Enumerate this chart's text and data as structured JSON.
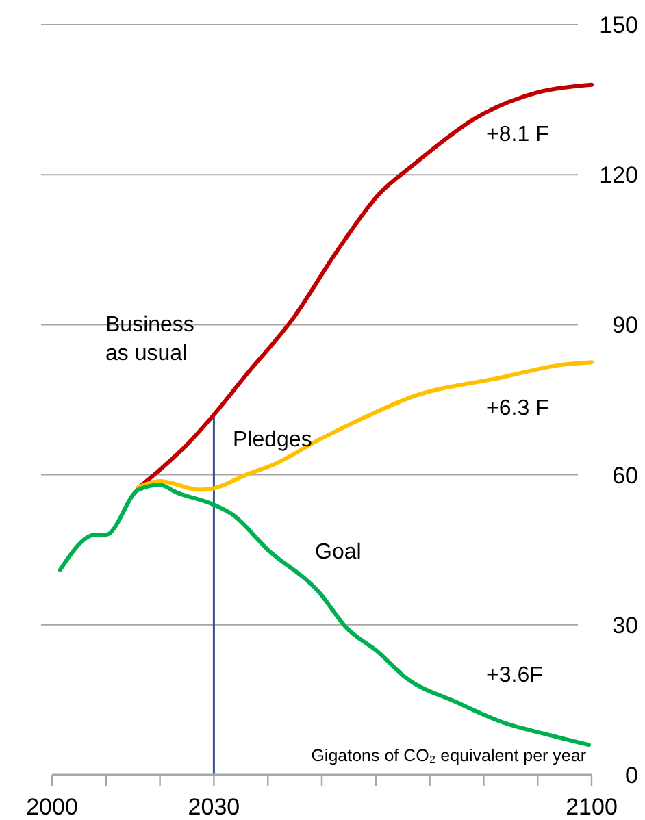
{
  "chart_data": {
    "type": "line",
    "ylabel": "Gigatons of CO₂ equivalent per year",
    "xlim": [
      2000,
      2100
    ],
    "ylim": [
      0,
      150
    ],
    "xticks": [
      2000,
      {
        "value": 2010,
        "label": null
      },
      {
        "value": 2020,
        "label": null
      },
      2030,
      {
        "value": 2040,
        "label": null
      },
      {
        "value": 2050,
        "label": null
      },
      {
        "value": 2060,
        "label": null
      },
      {
        "value": 2070,
        "label": null
      },
      {
        "value": 2080,
        "label": null
      },
      {
        "value": 2090,
        "label": null
      },
      2100
    ],
    "yticks": [
      0,
      30,
      60,
      90,
      120,
      150
    ],
    "grid": "y",
    "marker": "none",
    "line_style": "solid",
    "series": [
      {
        "name": "Business\nas usual",
        "color": "#c00000",
        "x": [
          2016,
          2020,
          2025,
          2030,
          2036,
          2044.5,
          2053,
          2060.5,
          2067,
          2071,
          2078,
          2088.5,
          2100
        ],
        "values": [
          57.4,
          61,
          66,
          72,
          80,
          91,
          105,
          116,
          122,
          125.5,
          131,
          136,
          138
        ]
      },
      {
        "name": "Pledges",
        "color": "#ffc000",
        "x": [
          2016,
          2020,
          2027.5,
          2030,
          2036,
          2041,
          2049.5,
          2058,
          2066.5,
          2083.5,
          2094.5,
          2100
        ],
        "values": [
          57.5,
          58.7,
          57,
          57.3,
          60,
          62,
          67,
          71.5,
          75.5,
          79.5,
          82,
          82.5
        ]
      },
      {
        "name": "Goal",
        "color": "#00b050",
        "x": [
          2001.5,
          2008,
          2010,
          2016,
          2020,
          2023,
          2030,
          2033.5,
          2040,
          2049.5,
          2054.5,
          2060.5,
          2065.5,
          2075,
          2083.5,
          2092,
          2099.5
        ],
        "values": [
          41,
          48,
          48,
          57,
          58,
          56.5,
          54,
          52,
          45,
          36.5,
          29.5,
          24.5,
          19.5,
          14.5,
          10.5,
          8,
          6
        ]
      }
    ],
    "ref_lines": [
      {
        "axis": "x",
        "value": 2030,
        "color": "#2e5596"
      }
    ],
    "annotations": [
      "+8.1 F",
      "+6.3 F",
      "+3.6F"
    ]
  }
}
